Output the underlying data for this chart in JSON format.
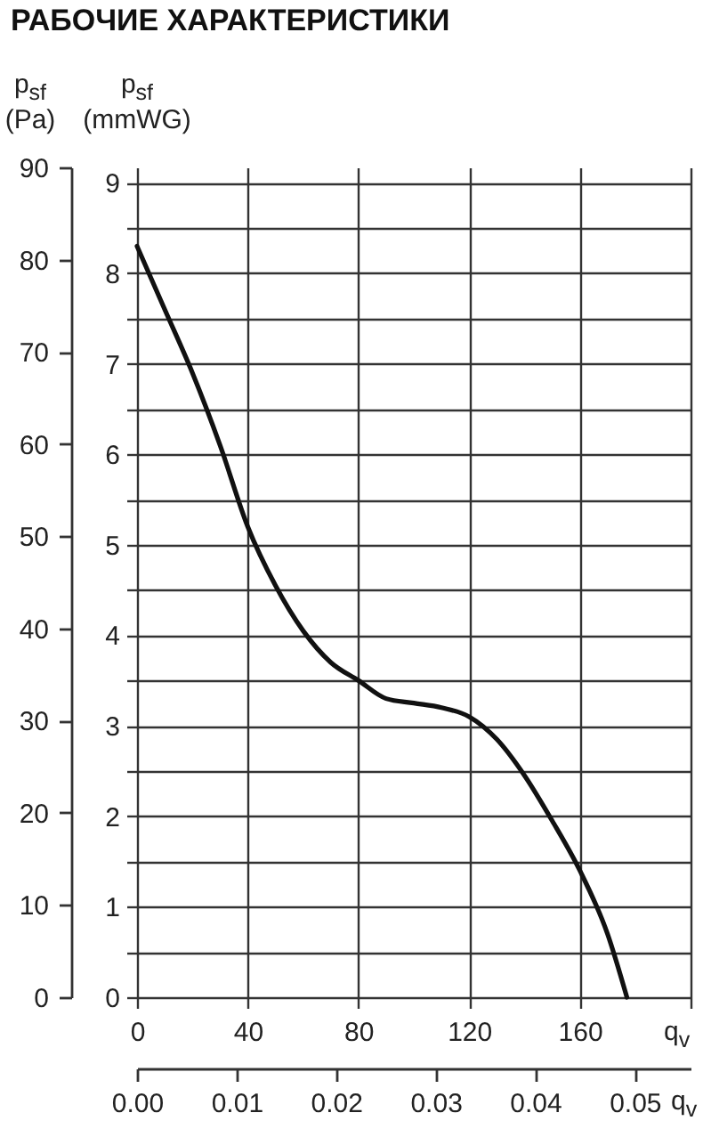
{
  "chart_data": {
    "type": "line",
    "title": "РАБОЧИЕ ХАРАКТЕРИСТИКИ",
    "xlabel": "q$_{v}$",
    "x2label": "q$_{v}$",
    "ylabel": "p$_{sf}$ (Pa)",
    "y2label": "p$_{sf}$ (mmWG)",
    "x": [
      0,
      10,
      20,
      30,
      40,
      50,
      60,
      70,
      80,
      90,
      100,
      110,
      120,
      130,
      140,
      150,
      160,
      170,
      177
    ],
    "series": [
      {
        "color": "#111111",
        "axis": "y2",
        "values": [
          8.3,
          7.6,
          6.9,
          6.1,
          5.2,
          4.55,
          4.05,
          3.7,
          3.5,
          3.3,
          3.25,
          3.2,
          3.1,
          2.85,
          2.45,
          1.95,
          1.4,
          0.7,
          0
        ]
      }
    ],
    "xlim": [
      0,
      200
    ],
    "xticks": [
      0,
      40,
      80,
      120,
      160,
      {
        "value": 200,
        "label": null
      }
    ],
    "x2lim": [
      0,
      0.0556
    ],
    "x2ticks": [
      {
        "value": 0,
        "label": "0.00"
      },
      0.01,
      0.02,
      0.03,
      0.04,
      0.05
    ],
    "ylim": [
      0,
      90
    ],
    "yticks": [
      0,
      10,
      20,
      30,
      40,
      50,
      60,
      70,
      80,
      90
    ],
    "y2lim": [
      0,
      9.17
    ],
    "y2ticks": [
      0,
      {
        "value": 0.5,
        "label": null
      },
      1,
      {
        "value": 1.5,
        "label": null
      },
      2,
      {
        "value": 2.5,
        "label": null
      },
      3,
      {
        "value": 3.5,
        "label": null
      },
      4,
      {
        "value": 4.5,
        "label": null
      },
      5,
      {
        "value": 5.5,
        "label": null
      },
      6,
      {
        "value": 6.5,
        "label": null
      },
      7,
      {
        "value": 7.5,
        "label": null
      },
      8,
      {
        "value": 8.5,
        "label": null
      },
      9
    ],
    "grid": true,
    "line_style": "solid"
  }
}
